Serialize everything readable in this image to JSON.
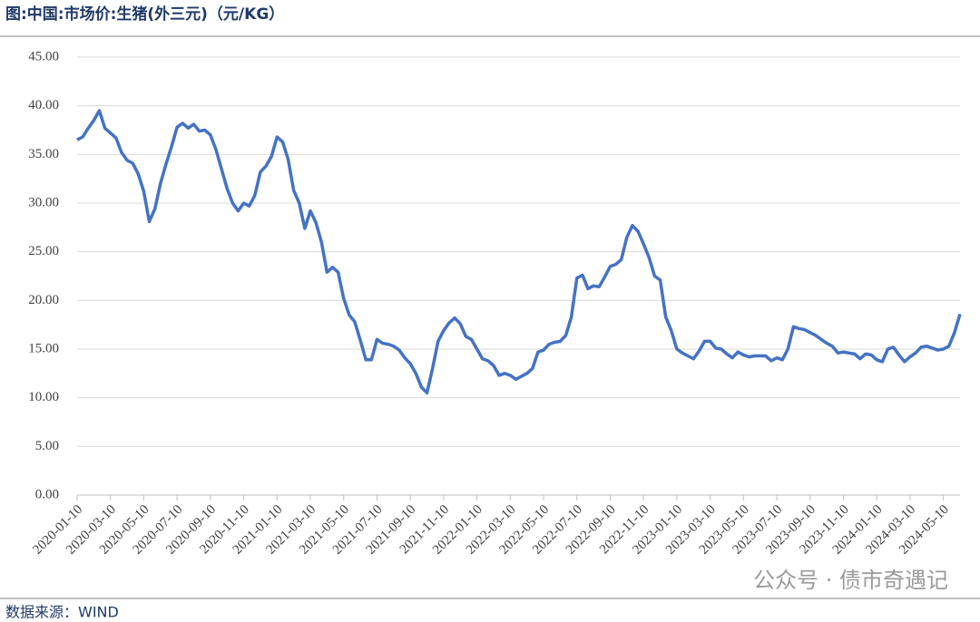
{
  "chart_data": {
    "type": "line",
    "title": "图:中国:市场价:生猪(外三元)（元/KG）",
    "source": "数据来源：WIND",
    "watermark": "公众号 · 债市奇遇记",
    "categories": [
      "2020-01-10",
      null,
      null,
      null,
      null,
      null,
      "2020-03-10",
      null,
      null,
      null,
      null,
      null,
      "2020-05-10",
      null,
      null,
      null,
      null,
      null,
      "2020-07-10",
      null,
      null,
      null,
      null,
      null,
      "2020-09-10",
      null,
      null,
      null,
      null,
      null,
      "2020-11-10",
      null,
      null,
      null,
      null,
      null,
      "2021-01-10",
      null,
      null,
      null,
      null,
      null,
      "2021-03-10",
      null,
      null,
      null,
      null,
      null,
      "2021-05-10",
      null,
      null,
      null,
      null,
      null,
      "2021-07-10",
      null,
      null,
      null,
      null,
      null,
      "2021-09-10",
      null,
      null,
      null,
      null,
      null,
      "2021-11-10",
      null,
      null,
      null,
      null,
      null,
      "2022-01-10",
      null,
      null,
      null,
      null,
      null,
      "2022-03-10",
      null,
      null,
      null,
      null,
      null,
      "2022-05-10",
      null,
      null,
      null,
      null,
      null,
      "2022-07-10",
      null,
      null,
      null,
      null,
      null,
      "2022-09-10",
      null,
      null,
      null,
      null,
      null,
      "2022-11-10",
      null,
      null,
      null,
      null,
      null,
      "2023-01-10",
      null,
      null,
      null,
      null,
      null,
      "2023-03-10",
      null,
      null,
      null,
      null,
      null,
      "2023-05-10",
      null,
      null,
      null,
      null,
      null,
      "2023-07-10",
      null,
      null,
      null,
      null,
      null,
      "2023-09-10",
      null,
      null,
      null,
      null,
      null,
      "2023-11-10",
      null,
      null,
      null,
      null,
      null,
      "2024-01-10",
      null,
      null,
      null,
      null,
      null,
      "2024-03-10",
      null,
      null,
      null,
      null,
      null,
      "2024-05-10",
      null,
      null,
      null
    ],
    "series": [
      {
        "name": "中国:市场价:生猪(外三元)",
        "color": "#4472c4",
        "values": [
          36.5,
          36.8,
          37.7,
          38.5,
          39.5,
          37.7,
          37.2,
          36.7,
          35.2,
          34.4,
          34.1,
          33.0,
          31.2,
          28.1,
          29.4,
          32.0,
          34.0,
          35.8,
          37.8,
          38.2,
          37.7,
          38.1,
          37.4,
          37.5,
          37.0,
          35.5,
          33.5,
          31.5,
          30.0,
          29.2,
          30.0,
          29.7,
          30.8,
          33.2,
          33.8,
          34.8,
          36.8,
          36.3,
          34.5,
          31.3,
          30.0,
          27.4,
          29.2,
          28.0,
          26.0,
          22.9,
          23.4,
          22.9,
          20.2,
          18.5,
          17.8,
          15.9,
          13.9,
          13.9,
          16.0,
          15.6,
          15.5,
          15.3,
          14.9,
          14.1,
          13.5,
          12.5,
          11.1,
          10.5,
          13.0,
          15.8,
          16.9,
          17.7,
          18.2,
          17.6,
          16.3,
          16.0,
          15.0,
          14.0,
          13.8,
          13.3,
          12.3,
          12.5,
          12.3,
          11.9,
          12.2,
          12.5,
          13.0,
          14.7,
          14.9,
          15.5,
          15.7,
          15.8,
          16.4,
          18.3,
          22.3,
          22.6,
          21.2,
          21.5,
          21.4,
          22.4,
          23.5,
          23.7,
          24.2,
          26.5,
          27.7,
          27.1,
          25.8,
          24.4,
          22.5,
          22.1,
          18.3,
          16.9,
          15.0,
          14.6,
          14.3,
          14.0,
          14.8,
          15.8,
          15.8,
          15.1,
          15.0,
          14.5,
          14.1,
          14.7,
          14.4,
          14.2,
          14.3,
          14.3,
          14.3,
          13.8,
          14.1,
          13.9,
          15.0,
          17.3,
          17.1,
          17.0,
          16.7,
          16.4,
          16.0,
          15.6,
          15.3,
          14.6,
          14.7,
          14.6,
          14.5,
          14.0,
          14.5,
          14.4,
          13.9,
          13.7,
          15.0,
          15.2,
          14.4,
          13.7,
          14.2,
          14.6,
          15.2,
          15.3,
          15.1,
          14.9,
          15.0,
          15.3,
          16.7,
          18.6
        ]
      }
    ],
    "ylim": [
      0,
      45
    ],
    "yticks": [
      {
        "value": 0,
        "label": "0.00"
      },
      {
        "value": 5,
        "label": "5.00"
      },
      {
        "value": 10,
        "label": "10.00"
      },
      {
        "value": 15,
        "label": "15.00"
      },
      {
        "value": 20,
        "label": "20.00"
      },
      {
        "value": 25,
        "label": "25.00"
      },
      {
        "value": 30,
        "label": "30.00"
      },
      {
        "value": 35,
        "label": "35.00"
      },
      {
        "value": 40,
        "label": "40.00"
      },
      {
        "value": 45,
        "label": "45.00"
      }
    ],
    "grid": true
  }
}
